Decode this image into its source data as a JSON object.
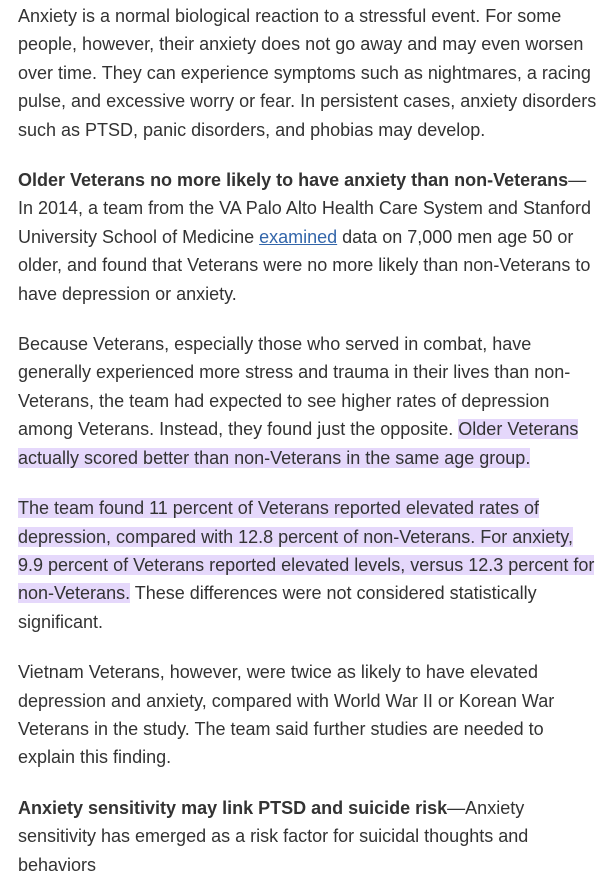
{
  "paragraphs": {
    "p1": "Anxiety is a normal biological reaction to a stressful event. For some people, however, their anxiety does not go away and may even worsen over time. They can experience symptoms such as nightmares, a racing pulse, and excessive worry or fear. In persistent cases, anxiety disorders such as PTSD, panic disorders, and phobias may develop.",
    "p2": {
      "lead": "Older Veterans no more likely to have anxiety than non-Veterans",
      "text_before_link": "—In 2014, a team from the VA Palo Alto Health Care System and Stanford University School of Medicine ",
      "link": "examined",
      "text_after_link": " data on 7,000 men age 50 or older, and found that Veterans were no more likely than non-Veterans to have depression or anxiety."
    },
    "p3": {
      "text": "Because Veterans, especially those who served in combat, have generally experienced more stress and trauma in their lives than non-Veterans, the team had expected to see higher rates of depression among Veterans. Instead, they found just the opposite. ",
      "highlight": "Older Veterans actually scored better than non-Veterans in the same age group."
    },
    "p4": {
      "highlight": "The team found 11 percent of Veterans reported elevated rates of depression, compared with 12.8 percent of non-Veterans. For anxiety, 9.9 percent of Veterans reported elevated levels, versus 12.3 percent for non-Veterans.",
      "text": " These differences were not considered statistically significant."
    },
    "p5": "Vietnam Veterans, however, were twice as likely to have elevated depression and anxiety, compared with World War II or Korean War Veterans in the study. The team said further studies are needed to explain this finding.",
    "p6": {
      "lead": "Anxiety sensitivity may link PTSD and suicide risk",
      "text": "—Anxiety sensitivity has emerged as a risk factor for suicidal thoughts and behaviors"
    }
  },
  "colors": {
    "text": "#333333",
    "link": "#3366aa",
    "highlight": "#e5d8fb"
  }
}
